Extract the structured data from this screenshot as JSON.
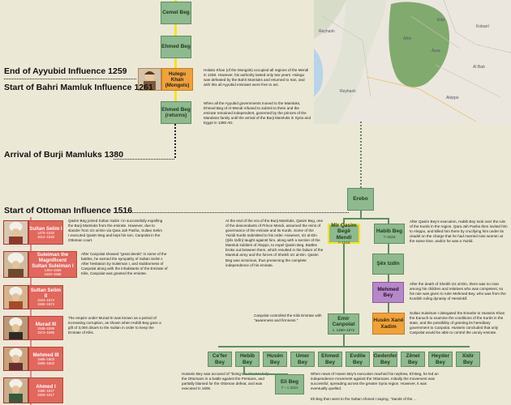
{
  "eras": {
    "ayyubid_end": "End of Ayyubid Influence 1259",
    "bahri_start": "Start of Bahri Mamluk Influence 1261",
    "burji": "Arrival of Burji Mamluks 1380",
    "ottoman": "Start of Ottoman Influence 1516"
  },
  "top_nodes": {
    "cemel": "Cemel Beg",
    "ehmed1": "Ehmed Beg",
    "ehmed2_name": "Ehmed Beg",
    "ehmed2_sub": "(returns)"
  },
  "hulegu": {
    "name": "Hulegu Khan",
    "sub": "(Mongols)"
  },
  "notes_top": {
    "hulegu": "Holako Khan (of the Mongols) occupied all regions of the Mendi in 1259. However, his authority lasted only two years. Hulegu was defeated by the Bahri Mamluks and returned to Iran, and with this all Ayyubid emirates were free to act.",
    "ayyubid_gov": "When all the Ayyubid governments moved to the Mamluks, Ehmed Beg of Al-Mendi refused to submit to them and the emirate remained independent, governed by the princes of the Mandean family until the arrival of the Burji Mamluks in Syria and Egypt in 1380 AD."
  },
  "sultans": [
    {
      "name": "Sultan Selim I",
      "years": "1470–1520\n1512–1520"
    },
    {
      "name": "Suleiman the Magnificent\nSultan Suleiman I",
      "years": "1494–1566\n1520–1566"
    },
    {
      "name": "Sultan Selim II",
      "years": "1524–1574\n1566–1574"
    },
    {
      "name": "Murad III",
      "years": "1546–1595\n1574–1595"
    },
    {
      "name": "Mehmed III",
      "years": "1566–1603\n1595–1603"
    },
    {
      "name": "Ahmed I",
      "years": "1590–1617\n1603–1617"
    }
  ],
  "notes_left": {
    "selim": "Qasim Beg joined Sultan Salim I in successfully expelling the Burji Mamluks from the emirate. However, due to slander from Izz al-Din via Qara Jah Pasha, Sultan Selim I executed Qasim Beg and kept his son, Canpolat in the Ottoman court.",
    "suleiman": "After Canpolat showed \"great deeds\" in some of the battles, he earned the sympathy of Sultan Selim I. After hesitation by Suleiman I, and stubborness of Canpolat along with the inhabitants of the Emirate of Kilis, Canpolat was granted the emirate.",
    "murad": "The empire under Murad III was known as a period of increasing corruption, as shown when Hubib Beg gave a gift of 3,000 dinars to the Sultan in order to keep the Emirate of Kilis."
  },
  "notes_mid": {
    "burji_rule": "At the end of the era of the Burji Mamluks, Qasim Beg, one of the descendants of Prince Mendi, assumed the reins of governance of the emirate and its Kurds. Some of the Yazidi Kurds submitted to his order. However, Izz al-Din (Şêx Izdîn) taught against him, along with a section of the Mamluk soldiers of Aleppo, to expel Qasim Beg. Battles broke out between them, which resulted in the failure of the Mamluk army and the forces of Sheikh Izz al-Din. Qasim Beg was victorious, thus preserving the complete independence of his emirate.",
    "canpolat": "Canpolat controlled the Kilis Emirate with \"awareness and firmness.\"",
    "hussein": "Hussein Bey was accused of \"being too slow\" to help the Ottomans in a battle against the Persians, and partially blamed for the Ottoman defeat, and was executed in 1605."
  },
  "notes_right": {
    "habib": "After Qasim Bey's execution, Habib Bey took over the rule of the Kurds in the region. Qara Jah Pasha then invited him to Aleppo, and killed him there by crucifying him under its citadel on the charge that he had married nine women at the same time, and/or he was a Yazidi.",
    "mehmed": "After the death of Sheikh Izz al-Din, there was no man among his children and relatives who was competent, so his rule was given to ruler Mehmed Bey, who was from the Kurdish ruling dynasty of Hessinkif.",
    "suleiman": "Sultan Suleiman I delegated the Emarite to Hussein Khan the Eunuch to examine the conditions of the Kurds in the state, and the possibility of granting its hereditary government to Canpolat. Hussein concluded that only Canpolat would be able to control the unruly emirate.",
    "elibeg": "When news of Husen Bey's execution reached his nephew, Eli Beg, he led an independence movement against the Ottomans. Initially the movement was successful, spreading across the greater Syria region. However, it was eventually quelled.",
    "elibeg2": "Eli Beg then went to the Sultan Ahmed I saying, \"Sands of the ..."
  },
  "tree": {
    "erebo": "Erebo",
    "qasim_name": "Mîr Qasim Begê Mendî",
    "qasim_years": "?–1516",
    "habib_name": "Habib Beg",
    "habib_years": "?–1516",
    "sex": "Şêx Izdîn",
    "mehmed": "Mehmed Bey",
    "husen_xane": "Husên Xanê Xadim",
    "canpolat_name": "Emir Canpolat",
    "canpolat_years": "c. 1480–1572",
    "sons": [
      "Ce'fer Bey",
      "Hebîb Bey",
      "Husên Bey",
      "Umer Bey",
      "Ehmed Bey",
      "Evdile Bey",
      "Gedenfer Bey",
      "Zênel Bey",
      "Heyder Bey",
      "Xidir Bey"
    ],
    "eli_name": "Eli Beg",
    "eli_years": "? – c.1611"
  },
  "map": {
    "labels": [
      "Kilis",
      "Azaz",
      "Afrin",
      "Aleppo",
      "Reyhanlı",
      "Reyhanlı",
      "Al Bab",
      "Kobanî"
    ]
  },
  "colors": {
    "node_green": "#8fb98f",
    "timeline_yellow": "#f2e51c",
    "sultan_red": "#e2675d",
    "hulegu_orange": "#f0a23a",
    "map_green": "#6e9f5a"
  }
}
